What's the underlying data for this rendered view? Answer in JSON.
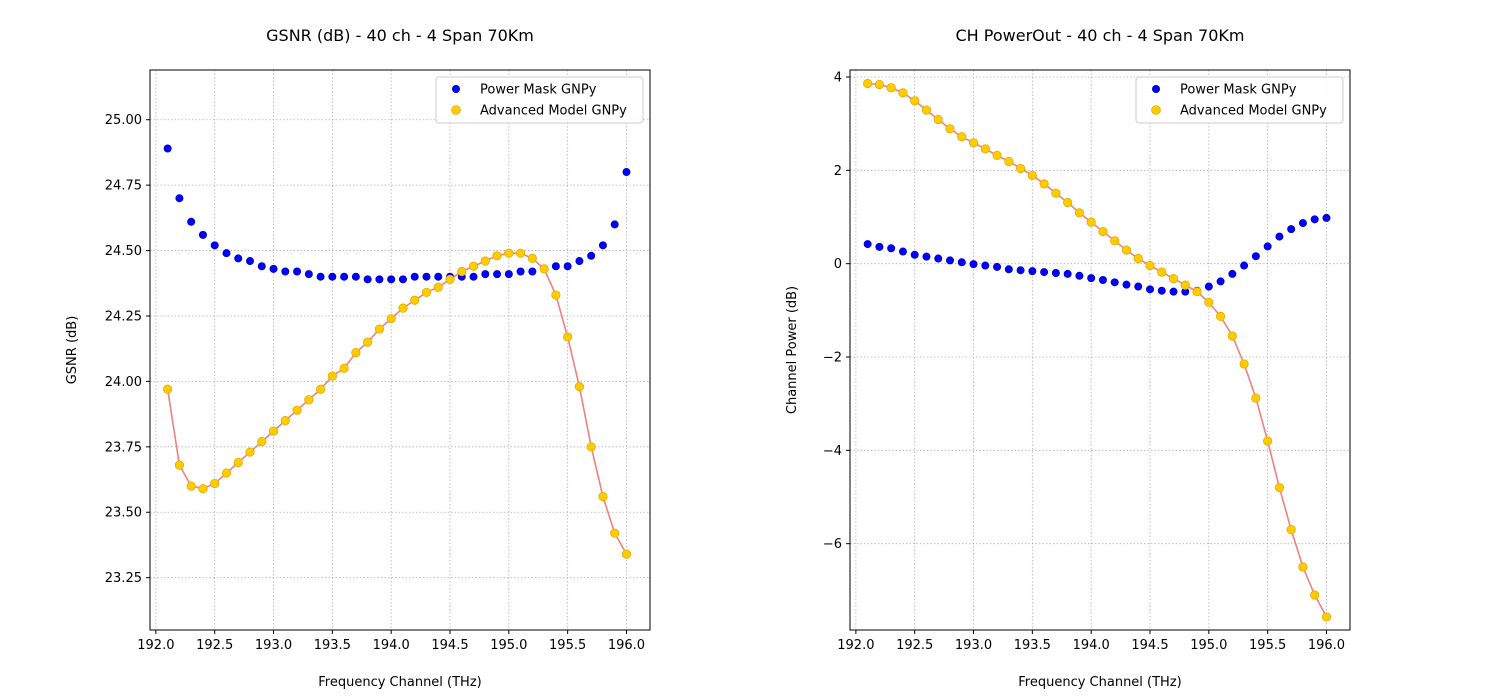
{
  "charts": [
    {
      "title": "GSNR (dB) - 40 ch - 4 Span 70Km",
      "xlabel": "Frequency Channel (THz)",
      "ylabel": "GSNR (dB)"
    },
    {
      "title": "CH PowerOut - 40 ch - 4 Span 70Km",
      "xlabel": "Frequency Channel (THz)",
      "ylabel": "Channel Power (dB)"
    }
  ],
  "chart_data": [
    {
      "type": "scatter",
      "title": "GSNR (dB) - 40 ch - 4 Span 70Km",
      "xlabel": "Frequency Channel (THz)",
      "ylabel": "GSNR (dB)",
      "xlim": [
        191.95,
        196.2
      ],
      "ylim": [
        23.05,
        25.19
      ],
      "xticks": [
        192.0,
        192.5,
        193.0,
        193.5,
        194.0,
        194.5,
        195.0,
        195.5,
        196.0
      ],
      "xtick_labels": [
        "192.0",
        "192.5",
        "193.0",
        "193.5",
        "194.0",
        "194.5",
        "195.0",
        "195.5",
        "196.0"
      ],
      "yticks": [
        23.25,
        23.5,
        23.75,
        24.0,
        24.25,
        24.5,
        24.75,
        25.0
      ],
      "ytick_labels": [
        "23.25",
        "23.50",
        "23.75",
        "24.00",
        "24.25",
        "24.50",
        "24.75",
        "25.00"
      ],
      "grid": true,
      "legend": "top-right",
      "x": [
        192.1,
        192.2,
        192.3,
        192.4,
        192.5,
        192.6,
        192.7,
        192.8,
        192.9,
        193.0,
        193.1,
        193.2,
        193.3,
        193.4,
        193.5,
        193.6,
        193.7,
        193.8,
        193.9,
        194.0,
        194.1,
        194.2,
        194.3,
        194.4,
        194.5,
        194.6,
        194.7,
        194.8,
        194.9,
        195.0,
        195.1,
        195.2,
        195.3,
        195.4,
        195.5,
        195.6,
        195.7,
        195.8,
        195.9,
        196.0
      ],
      "series": [
        {
          "name": "Power Mask GNPy",
          "color": "#0000ff",
          "values": [
            24.89,
            24.7,
            24.61,
            24.56,
            24.52,
            24.49,
            24.47,
            24.46,
            24.44,
            24.43,
            24.42,
            24.42,
            24.41,
            24.4,
            24.4,
            24.4,
            24.4,
            24.39,
            24.39,
            24.39,
            24.39,
            24.4,
            24.4,
            24.4,
            24.4,
            24.4,
            24.4,
            24.41,
            24.41,
            24.41,
            24.42,
            24.42,
            24.43,
            24.44,
            24.44,
            24.46,
            24.48,
            24.52,
            24.6,
            24.8
          ]
        },
        {
          "name": "Advanced Model GNPy",
          "color": "#ffcc00",
          "line_color": "#f08080",
          "values": [
            23.97,
            23.68,
            23.6,
            23.59,
            23.61,
            23.65,
            23.69,
            23.73,
            23.77,
            23.81,
            23.85,
            23.89,
            23.93,
            23.97,
            24.02,
            24.05,
            24.11,
            24.15,
            24.2,
            24.24,
            24.28,
            24.31,
            24.34,
            24.36,
            24.39,
            24.42,
            24.44,
            24.46,
            24.48,
            24.49,
            24.49,
            24.47,
            24.43,
            24.33,
            24.17,
            23.98,
            23.75,
            23.56,
            23.42,
            23.34
          ]
        }
      ]
    },
    {
      "type": "scatter",
      "title": "CH PowerOut - 40 ch - 4 Span 70Km",
      "xlabel": "Frequency Channel (THz)",
      "ylabel": "Channel Power (dB)",
      "xlim": [
        191.95,
        196.2
      ],
      "ylim": [
        -7.85,
        4.15
      ],
      "xticks": [
        192.0,
        192.5,
        193.0,
        193.5,
        194.0,
        194.5,
        195.0,
        195.5,
        196.0
      ],
      "xtick_labels": [
        "192.0",
        "192.5",
        "193.0",
        "193.5",
        "194.0",
        "194.5",
        "195.0",
        "195.5",
        "196.0"
      ],
      "yticks": [
        -6,
        -4,
        -2,
        0,
        2,
        4
      ],
      "ytick_labels": [
        "−6",
        "−4",
        "−2",
        "0",
        "2",
        "4"
      ],
      "grid": true,
      "legend": "top-right",
      "x": [
        192.1,
        192.2,
        192.3,
        192.4,
        192.5,
        192.6,
        192.7,
        192.8,
        192.9,
        193.0,
        193.1,
        193.2,
        193.3,
        193.4,
        193.5,
        193.6,
        193.7,
        193.8,
        193.9,
        194.0,
        194.1,
        194.2,
        194.3,
        194.4,
        194.5,
        194.6,
        194.7,
        194.8,
        194.9,
        195.0,
        195.1,
        195.2,
        195.3,
        195.4,
        195.5,
        195.6,
        195.7,
        195.8,
        195.9,
        196.0
      ],
      "series": [
        {
          "name": "Power Mask GNPy",
          "color": "#0000ff",
          "values": [
            0.42,
            0.36,
            0.33,
            0.26,
            0.19,
            0.15,
            0.11,
            0.07,
            0.03,
            -0.01,
            -0.04,
            -0.07,
            -0.12,
            -0.14,
            -0.16,
            -0.18,
            -0.2,
            -0.22,
            -0.26,
            -0.31,
            -0.35,
            -0.4,
            -0.45,
            -0.49,
            -0.55,
            -0.58,
            -0.6,
            -0.6,
            -0.58,
            -0.49,
            -0.38,
            -0.22,
            -0.04,
            0.16,
            0.37,
            0.58,
            0.74,
            0.87,
            0.95,
            0.98
          ]
        },
        {
          "name": "Advanced Model GNPy",
          "color": "#ffcc00",
          "line_color": "#f08080",
          "values": [
            3.86,
            3.84,
            3.77,
            3.66,
            3.49,
            3.29,
            3.09,
            2.89,
            2.72,
            2.59,
            2.46,
            2.32,
            2.19,
            2.04,
            1.89,
            1.71,
            1.51,
            1.31,
            1.09,
            0.89,
            0.69,
            0.49,
            0.29,
            0.11,
            -0.04,
            -0.18,
            -0.32,
            -0.46,
            -0.6,
            -0.83,
            -1.13,
            -1.55,
            -2.15,
            -2.88,
            -3.8,
            -4.8,
            -5.7,
            -6.5,
            -7.1,
            -7.57
          ]
        }
      ]
    }
  ]
}
